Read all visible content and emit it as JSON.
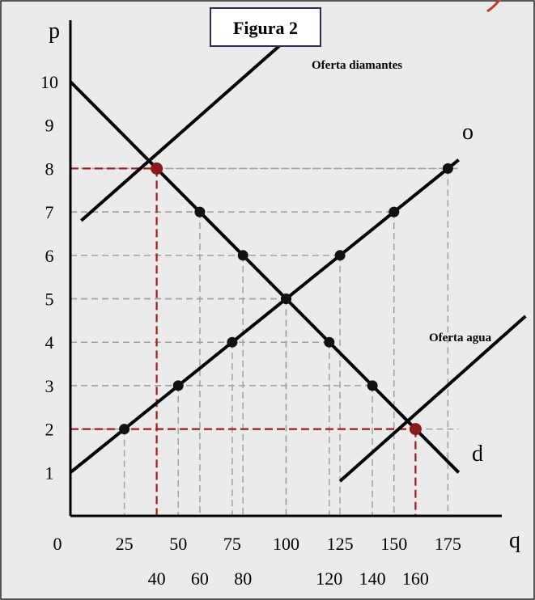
{
  "colors": {
    "background": "#ebebeb",
    "line": "#000000",
    "point": "#111111",
    "highlight": "#8b1a1a",
    "guide": "#a0a0a0",
    "guide_highlight": "#9b1c1c",
    "corner_mark": "#c0392b",
    "title_border": "#2b2b5a"
  },
  "chart_data": {
    "type": "line",
    "title": "Figura 2",
    "ylabel": "p",
    "xlabel": "q",
    "origin_label": "0",
    "xlim": [
      0,
      195
    ],
    "ylim": [
      0,
      11
    ],
    "x_ticks": [
      {
        "value": 25,
        "label": "25",
        "row": 1
      },
      {
        "value": 40,
        "label": "40",
        "row": 2
      },
      {
        "value": 50,
        "label": "50",
        "row": 1
      },
      {
        "value": 60,
        "label": "60",
        "row": 2
      },
      {
        "value": 75,
        "label": "75",
        "row": 1
      },
      {
        "value": 80,
        "label": "80",
        "row": 2
      },
      {
        "value": 100,
        "label": "100",
        "row": 1
      },
      {
        "value": 120,
        "label": "120",
        "row": 2
      },
      {
        "value": 125,
        "label": "125",
        "row": 1
      },
      {
        "value": 140,
        "label": "140",
        "row": 2
      },
      {
        "value": 150,
        "label": "150",
        "row": 1
      },
      {
        "value": 160,
        "label": "160",
        "row": 2
      },
      {
        "value": 175,
        "label": "175",
        "row": 1
      }
    ],
    "y_ticks": [
      {
        "value": 1,
        "label": "1"
      },
      {
        "value": 2,
        "label": "2"
      },
      {
        "value": 3,
        "label": "3"
      },
      {
        "value": 4,
        "label": "4"
      },
      {
        "value": 5,
        "label": "5"
      },
      {
        "value": 6,
        "label": "6"
      },
      {
        "value": 7,
        "label": "7"
      },
      {
        "value": 8,
        "label": "8"
      },
      {
        "value": 9,
        "label": "9"
      },
      {
        "value": 10,
        "label": "10"
      }
    ],
    "series": [
      {
        "label": "o",
        "x": [
          0,
          180
        ],
        "y": [
          1,
          8.2
        ],
        "points": [
          [
            25,
            2
          ],
          [
            50,
            3
          ],
          [
            75,
            4
          ],
          [
            100,
            5
          ],
          [
            125,
            6
          ],
          [
            150,
            7
          ],
          [
            175,
            8
          ]
        ]
      },
      {
        "label": "d",
        "x": [
          0,
          180
        ],
        "y": [
          10,
          1
        ],
        "points": [
          [
            60,
            7
          ],
          [
            80,
            6
          ],
          [
            100,
            5
          ],
          [
            120,
            4
          ],
          [
            140,
            3
          ]
        ]
      },
      {
        "label": "Oferta diamantes",
        "x": [
          5,
          110
        ],
        "y": [
          6.8,
          11.4
        ],
        "points": []
      },
      {
        "label": "Oferta agua",
        "x": [
          125,
          211
        ],
        "y": [
          0.8,
          4.6
        ],
        "points": []
      }
    ],
    "highlighted_points": [
      {
        "x": 40,
        "y": 8
      },
      {
        "x": 160,
        "y": 2
      }
    ]
  }
}
